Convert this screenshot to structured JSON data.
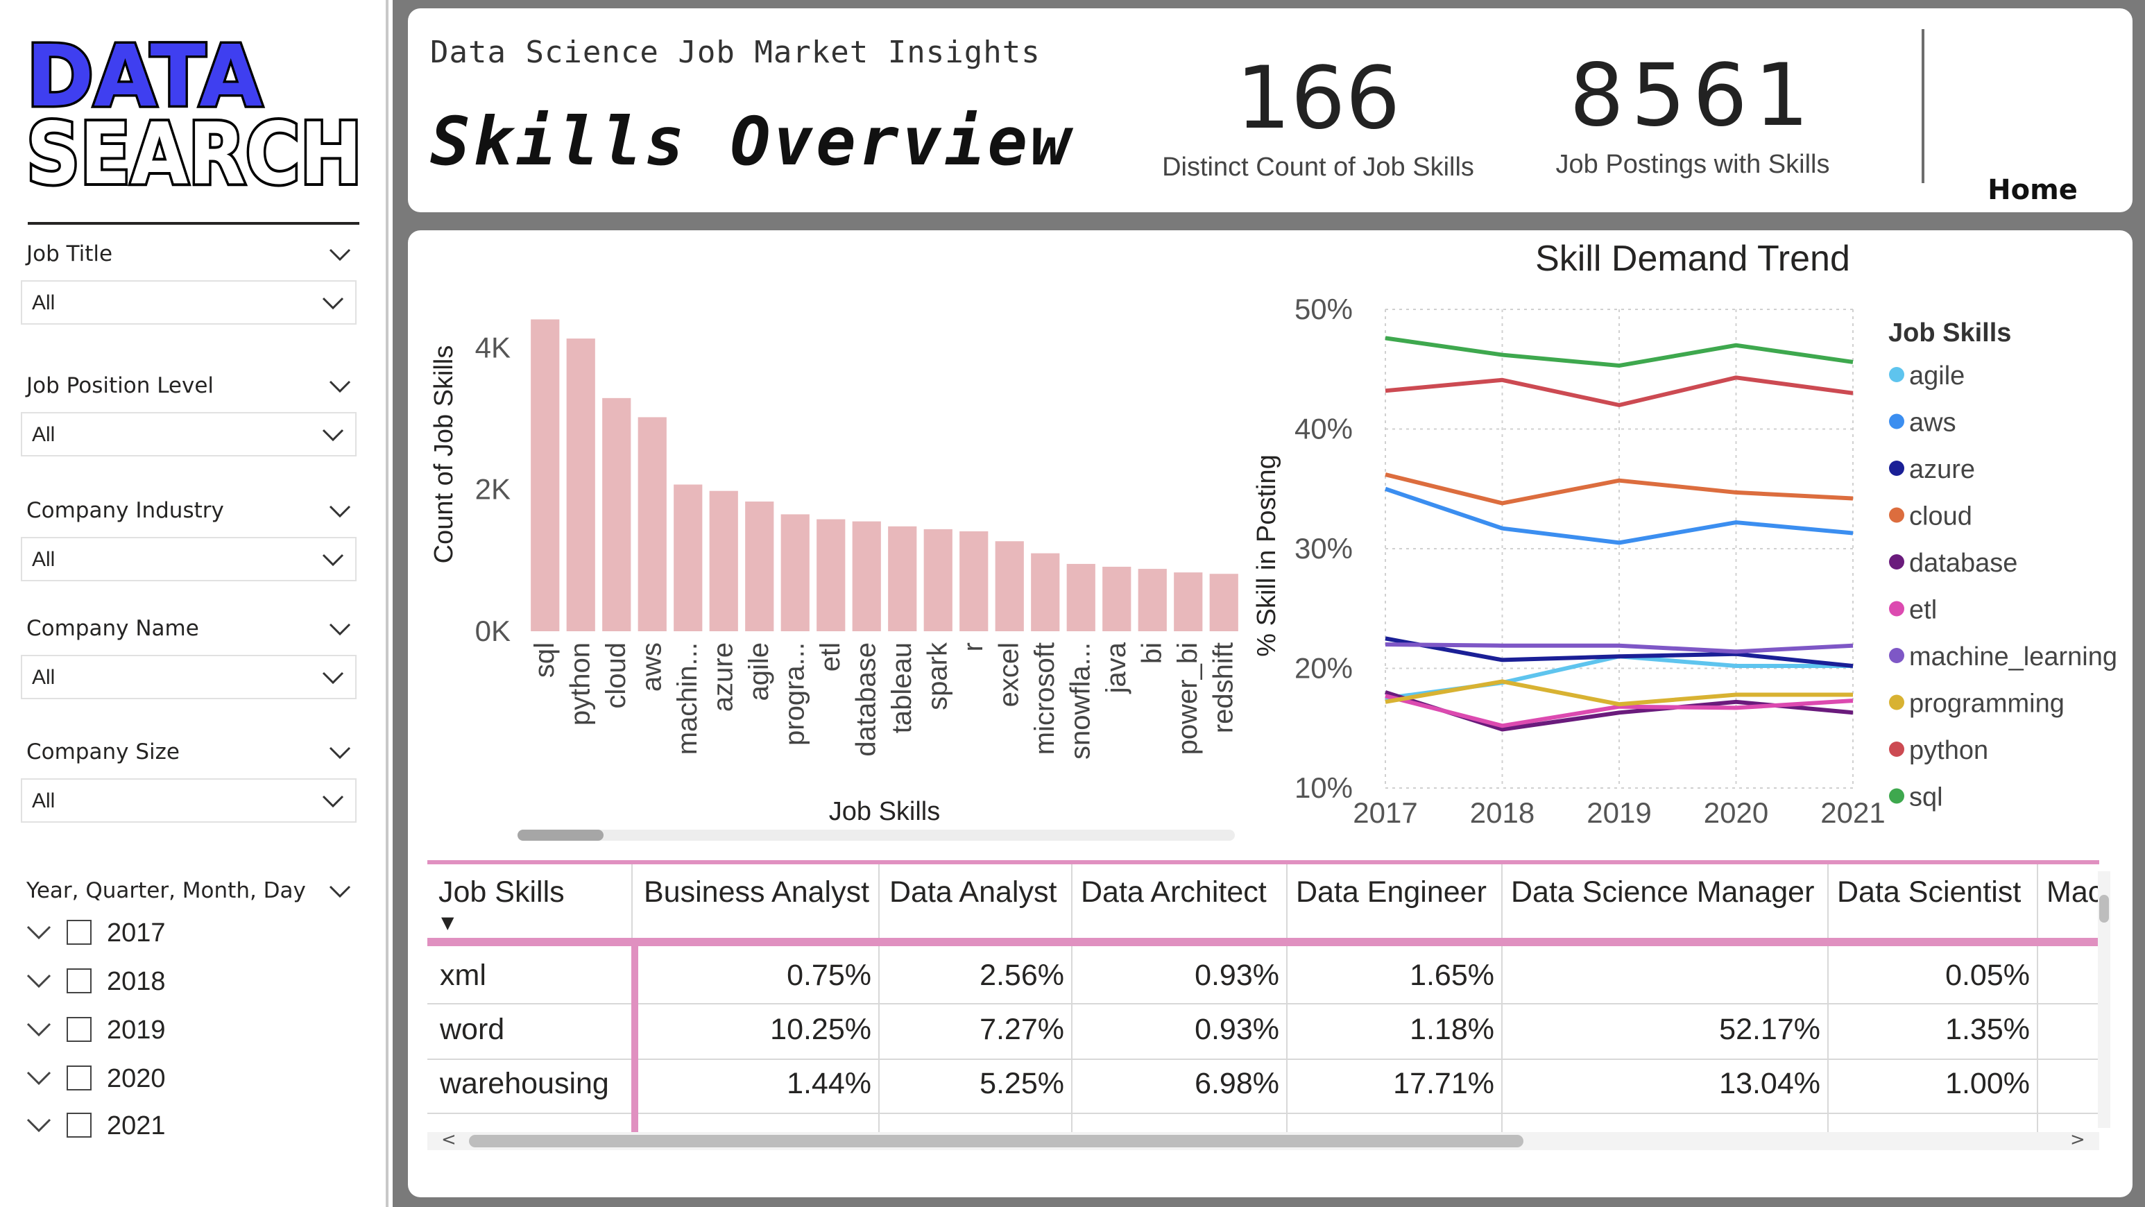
{
  "sidebar": {
    "logo": {
      "line1": "DATA",
      "line2": "SEARCH"
    },
    "slicers": [
      {
        "label": "Job Title",
        "value": "All"
      },
      {
        "label": "Job Position Level",
        "value": "All"
      },
      {
        "label": "Company Industry",
        "value": "All"
      },
      {
        "label": "Company Name",
        "value": "All"
      },
      {
        "label": "Company Size",
        "value": "All"
      }
    ],
    "date_slicer": {
      "label": "Year, Quarter, Month, Day",
      "years": [
        "2017",
        "2018",
        "2019",
        "2020",
        "2021"
      ]
    }
  },
  "header": {
    "subtitle": "Data Science Job Market Insights",
    "title": "Skills Overview",
    "kpis": [
      {
        "value": "166",
        "label": "Distinct Count of Job Skills"
      },
      {
        "value": "8561",
        "label": "Job Postings with Skills"
      }
    ],
    "home_label": "Home"
  },
  "colors": {
    "bar": "#e8b8bb",
    "matrix_accent": "#e090c0",
    "logo_blue": "#3f3ff0"
  },
  "chart_data": [
    {
      "type": "bar",
      "title": "",
      "xlabel": "Job Skills",
      "ylabel": "Count of Job Skills",
      "categories": [
        "sql",
        "python",
        "cloud",
        "aws",
        "machin...",
        "azure",
        "agile",
        "progra...",
        "etl",
        "database",
        "tableau",
        "spark",
        "r",
        "excel",
        "microsoft",
        "snowfla...",
        "java",
        "bi",
        "power_bi",
        "redshift"
      ],
      "values": [
        4400,
        4130,
        3290,
        3020,
        2070,
        1980,
        1830,
        1650,
        1580,
        1550,
        1480,
        1440,
        1410,
        1270,
        1100,
        950,
        910,
        880,
        830,
        810
      ],
      "ylim": [
        0,
        4600
      ],
      "yticks": [
        "0K",
        "2K",
        "4K"
      ],
      "ytick_values": [
        0,
        2000,
        4000
      ],
      "color": "#e8b8bb"
    },
    {
      "type": "line",
      "title": "Skill Demand Trend",
      "xlabel": "",
      "ylabel": "% Skill in Posting",
      "x": [
        "2017",
        "2018",
        "2019",
        "2020",
        "2021"
      ],
      "ylim": [
        10,
        50
      ],
      "yticks": [
        "10%",
        "20%",
        "30%",
        "40%",
        "50%"
      ],
      "ytick_values": [
        10,
        20,
        30,
        40,
        50
      ],
      "grid": true,
      "legend_title": "Job Skills",
      "legend_position": "right",
      "series": [
        {
          "name": "agile",
          "color": "#5ec4ee",
          "values": [
            17.5,
            18.8,
            21.0,
            20.2,
            20.2
          ]
        },
        {
          "name": "aws",
          "color": "#3b8ef0",
          "values": [
            35.0,
            31.7,
            30.5,
            32.2,
            31.3
          ]
        },
        {
          "name": "azure",
          "color": "#1a1f96",
          "values": [
            22.5,
            20.7,
            21.0,
            21.2,
            20.2
          ]
        },
        {
          "name": "cloud",
          "color": "#dc6d3e",
          "values": [
            36.2,
            33.8,
            35.7,
            34.7,
            34.2
          ]
        },
        {
          "name": "database",
          "color": "#6a1b7c",
          "values": [
            18.0,
            14.9,
            16.3,
            17.2,
            16.3
          ]
        },
        {
          "name": "etl",
          "color": "#dc4ab0",
          "values": [
            17.7,
            15.2,
            16.8,
            16.7,
            17.3
          ]
        },
        {
          "name": "machine_learning",
          "color": "#7e57c6",
          "values": [
            22.0,
            21.9,
            21.9,
            21.4,
            21.9
          ]
        },
        {
          "name": "programming",
          "color": "#d8b232",
          "values": [
            17.2,
            18.9,
            17.0,
            17.8,
            17.8
          ]
        },
        {
          "name": "python",
          "color": "#cc4a52",
          "values": [
            43.2,
            44.1,
            42.0,
            44.3,
            43.0
          ]
        },
        {
          "name": "sql",
          "color": "#3ea84e",
          "values": [
            47.6,
            46.2,
            45.3,
            47.0,
            45.6
          ]
        }
      ]
    }
  ],
  "matrix": {
    "columns": [
      "Job Skills",
      "Business Analyst",
      "Data Analyst",
      "Data Architect",
      "Data Engineer",
      "Data Science Manager",
      "Data Scientist",
      "Mac"
    ],
    "rows": [
      {
        "skill": "xml",
        "cells": [
          "0.75%",
          "2.56%",
          "0.93%",
          "1.65%",
          "",
          "0.05%"
        ]
      },
      {
        "skill": "word",
        "cells": [
          "10.25%",
          "7.27%",
          "0.93%",
          "1.18%",
          "52.17%",
          "1.35%"
        ]
      },
      {
        "skill": "warehousing",
        "cells": [
          "1.44%",
          "5.25%",
          "6.98%",
          "17.71%",
          "13.04%",
          "1.00%"
        ]
      }
    ],
    "scroll_left_glyph": "<",
    "scroll_right_glyph": ">",
    "sort_glyph": "▼"
  }
}
